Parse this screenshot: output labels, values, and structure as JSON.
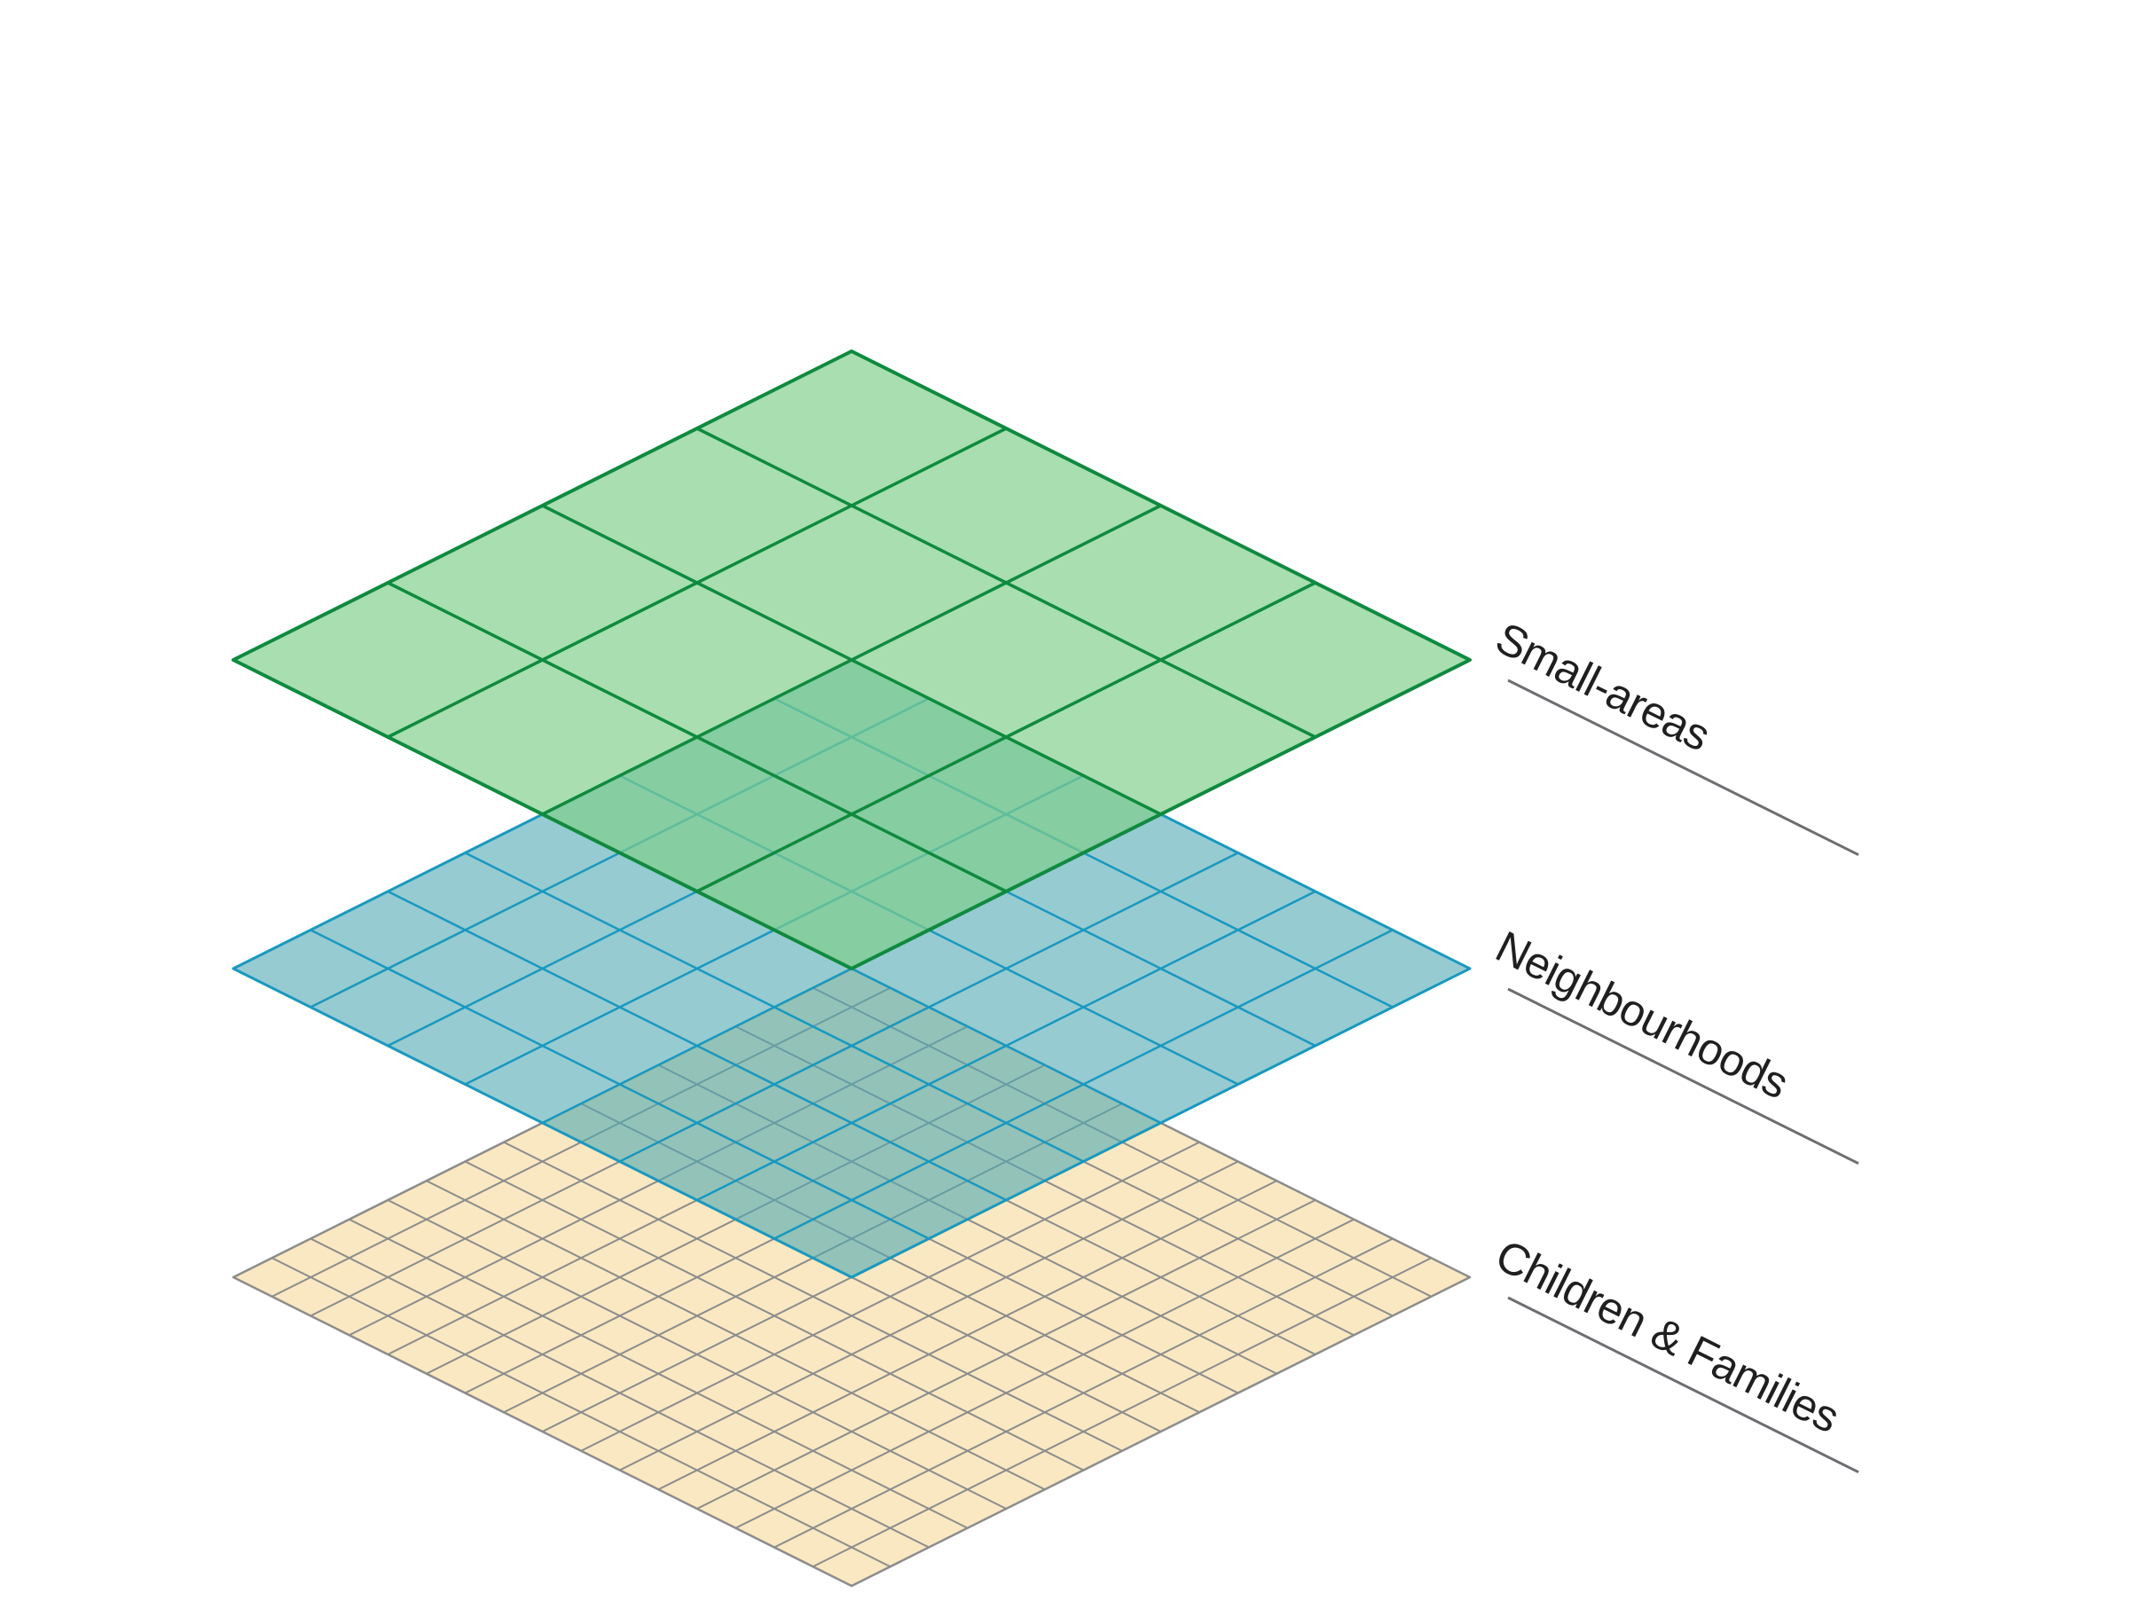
{
  "layers": [
    {
      "id": "small-areas",
      "label": "Small-areas",
      "grid_divisions": 4,
      "fill": "#7fcf8a",
      "fill_opacity": 0.68,
      "stroke": "#0f8a3e"
    },
    {
      "id": "neighbourhoods",
      "label": "Neighbourhoods",
      "grid_divisions": 8,
      "fill": "#4fa9b2",
      "fill_opacity": 0.6,
      "stroke": "#1a98bf"
    },
    {
      "id": "children-families",
      "label": "Children & Families",
      "grid_divisions": 16,
      "fill": "#f9e8c1",
      "fill_opacity": 1,
      "stroke": "#8c8c8c"
    }
  ],
  "colors": {
    "leader_line": "#6e6e72",
    "label_text": "#1f1f1f",
    "background": "#ffffff"
  }
}
